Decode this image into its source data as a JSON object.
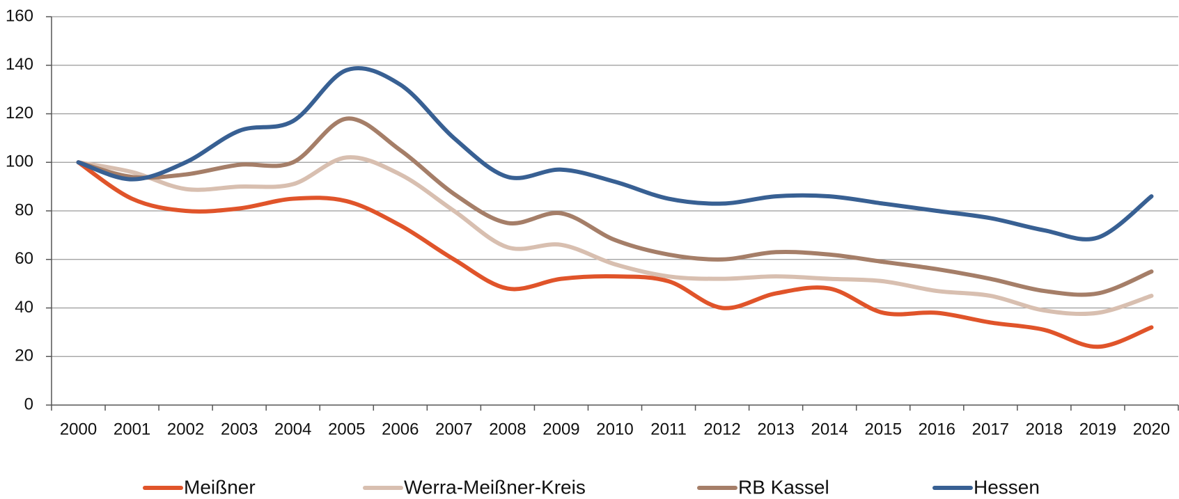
{
  "chart_data": {
    "type": "line",
    "categories": [
      "2000",
      "2001",
      "2002",
      "2003",
      "2004",
      "2005",
      "2006",
      "2007",
      "2008",
      "2009",
      "2010",
      "2011",
      "2012",
      "2013",
      "2014",
      "2015",
      "2016",
      "2017",
      "2018",
      "2019",
      "2020"
    ],
    "series": [
      {
        "name": "Meißner",
        "color": "#e0542a",
        "values": [
          100,
          85,
          80,
          81,
          85,
          84,
          74,
          60,
          48,
          52,
          53,
          51,
          40,
          46,
          48,
          38,
          38,
          34,
          31,
          24,
          32
        ]
      },
      {
        "name": "Werra-Meißner-Kreis",
        "color": "#d8bfb0",
        "values": [
          100,
          96,
          89,
          90,
          91,
          102,
          95,
          80,
          65,
          66,
          58,
          53,
          52,
          53,
          52,
          51,
          47,
          45,
          39,
          38,
          45
        ]
      },
      {
        "name": "RB Kassel",
        "color": "#a57e68",
        "values": [
          100,
          94,
          95,
          99,
          100,
          118,
          105,
          87,
          75,
          79,
          68,
          62,
          60,
          63,
          62,
          59,
          56,
          52,
          47,
          46,
          55
        ]
      },
      {
        "name": "Hessen",
        "color": "#386093",
        "values": [
          100,
          93,
          100,
          113,
          117,
          138,
          132,
          110,
          94,
          97,
          92,
          85,
          83,
          86,
          86,
          83,
          80,
          77,
          72,
          69,
          86
        ]
      }
    ],
    "ylim": [
      0,
      160
    ],
    "yticks": [
      0,
      20,
      40,
      60,
      80,
      100,
      120,
      140,
      160
    ],
    "grid": true,
    "legend": "bottom"
  }
}
